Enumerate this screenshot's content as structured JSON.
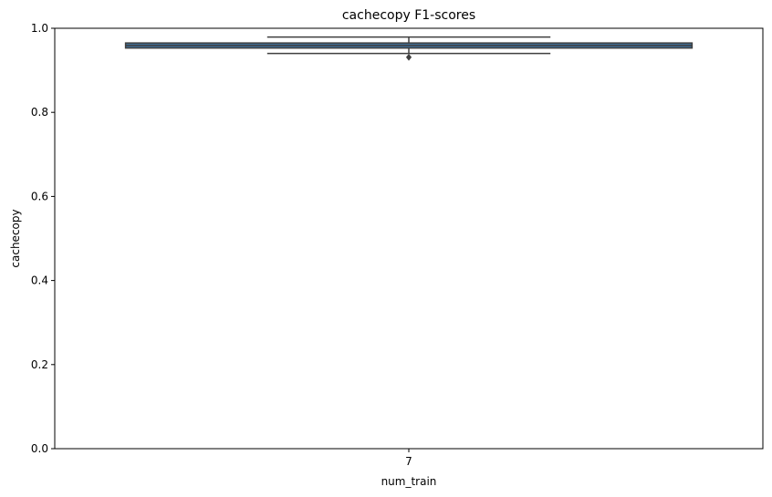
{
  "chart_data": {
    "type": "box",
    "title": "cachecopy F1-scores",
    "xlabel": "num_train",
    "ylabel": "cachecopy",
    "categories": [
      "7"
    ],
    "ylim": [
      0,
      1.0
    ],
    "yticks": [
      0.0,
      0.2,
      0.4,
      0.6,
      0.8,
      1.0
    ],
    "ytick_labels": [
      "0.0",
      "0.2",
      "0.4",
      "0.6",
      "0.8",
      "1.0"
    ],
    "boxes": [
      {
        "category": "7",
        "whisker_low": 0.94,
        "q1": 0.953,
        "median": 0.959,
        "q3": 0.965,
        "whisker_high": 0.979,
        "outliers": [
          0.931
        ]
      }
    ],
    "grid": false,
    "colors": {
      "box_fill": "#3e6e97",
      "line": "#3f3f3f"
    }
  }
}
